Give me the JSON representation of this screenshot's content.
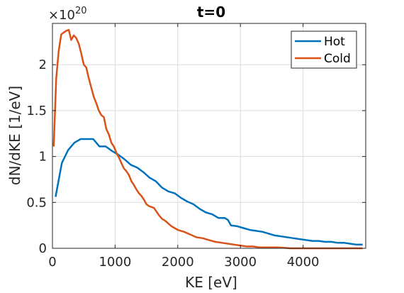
{
  "chart_data": {
    "type": "line",
    "title": "t=0",
    "xlabel": "KE [eV]",
    "ylabel": "dN/dKE [1/eV]",
    "y_multiplier_base": "×10",
    "y_multiplier_exponent": "20",
    "xlim": [
      0,
      5000
    ],
    "ylim": [
      0,
      2.45
    ],
    "xticks": [
      0,
      1000,
      2000,
      3000,
      4000
    ],
    "xtick_labels": [
      "0",
      "1000",
      "2000",
      "3000",
      "4000"
    ],
    "yticks": [
      0,
      0.5,
      1,
      1.5,
      2
    ],
    "ytick_labels": [
      "0",
      "0.5",
      "1",
      "1.5",
      "2"
    ],
    "grid": true,
    "legend_position": "top-right",
    "series": [
      {
        "name": "Hot",
        "color": "#0072BD",
        "x": [
          50,
          150,
          250,
          350,
          450,
          550,
          650,
          750,
          850,
          950,
          1050,
          1150,
          1250,
          1350,
          1450,
          1550,
          1650,
          1750,
          1850,
          1950,
          2050,
          2150,
          2250,
          2350,
          2450,
          2550,
          2650,
          2750,
          2800,
          2850,
          2950,
          3050,
          3150,
          3250,
          3350,
          3450,
          3550,
          3650,
          3750,
          3850,
          3950,
          4050,
          4150,
          4250,
          4350,
          4450,
          4550,
          4650,
          4750,
          4850,
          4950
        ],
        "y": [
          0.56,
          0.93,
          1.07,
          1.15,
          1.19,
          1.19,
          1.19,
          1.11,
          1.11,
          1.06,
          1.02,
          0.97,
          0.91,
          0.88,
          0.83,
          0.77,
          0.73,
          0.66,
          0.62,
          0.6,
          0.55,
          0.51,
          0.48,
          0.43,
          0.39,
          0.37,
          0.33,
          0.33,
          0.31,
          0.25,
          0.24,
          0.22,
          0.2,
          0.19,
          0.18,
          0.16,
          0.14,
          0.13,
          0.12,
          0.11,
          0.1,
          0.09,
          0.08,
          0.08,
          0.07,
          0.07,
          0.06,
          0.06,
          0.05,
          0.04,
          0.04
        ]
      },
      {
        "name": "Cold",
        "color": "#D95319",
        "x": [
          20,
          60,
          100,
          140,
          180,
          220,
          260,
          300,
          340,
          380,
          420,
          460,
          500,
          540,
          580,
          620,
          660,
          700,
          740,
          780,
          820,
          860,
          900,
          940,
          980,
          1020,
          1060,
          1100,
          1140,
          1180,
          1220,
          1260,
          1300,
          1340,
          1380,
          1420,
          1460,
          1500,
          1540,
          1580,
          1620,
          1660,
          1700,
          1750,
          1800,
          1850,
          1900,
          1950,
          2000,
          2100,
          2200,
          2300,
          2400,
          2500,
          2600,
          2700,
          2800,
          2900,
          3000,
          3100,
          3200,
          3300,
          3400,
          3500,
          3600,
          3800,
          4000,
          4200,
          4400,
          4600,
          4800,
          4950
        ],
        "y": [
          1.11,
          1.85,
          2.15,
          2.33,
          2.35,
          2.37,
          2.38,
          2.27,
          2.32,
          2.29,
          2.23,
          2.12,
          2.0,
          1.97,
          1.85,
          1.75,
          1.65,
          1.58,
          1.5,
          1.45,
          1.43,
          1.3,
          1.24,
          1.15,
          1.11,
          1.04,
          0.99,
          0.93,
          0.87,
          0.84,
          0.8,
          0.73,
          0.69,
          0.64,
          0.6,
          0.57,
          0.53,
          0.48,
          0.46,
          0.45,
          0.44,
          0.4,
          0.36,
          0.32,
          0.3,
          0.27,
          0.24,
          0.22,
          0.2,
          0.18,
          0.15,
          0.12,
          0.11,
          0.09,
          0.07,
          0.06,
          0.05,
          0.04,
          0.03,
          0.02,
          0.02,
          0.01,
          0.01,
          0.01,
          0.01,
          0.0,
          0.0,
          0.0,
          0.0,
          0.0,
          0.0,
          0.0
        ]
      }
    ]
  }
}
